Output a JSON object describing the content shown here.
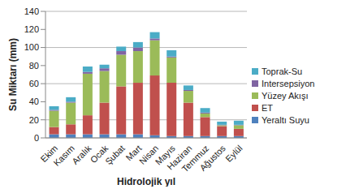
{
  "chart_data": {
    "type": "bar",
    "stacked": true,
    "grid": true,
    "legend": "right",
    "x_label": "Hidrolojik yıl",
    "y_label": "Su Miktarı (mm)",
    "categories": [
      "Ekim",
      "Kasım",
      "Aralık",
      "Ocak",
      "Şubat",
      "Mart",
      "Nisan",
      "Mayıs",
      "Haziran",
      "Temmuz",
      "Ağustos",
      "Eylül"
    ],
    "ylim": [
      0,
      140
    ],
    "yticks": [
      0,
      20,
      40,
      60,
      80,
      100,
      120,
      140
    ],
    "series": [
      {
        "name": "Yeraltı Suyu",
        "color": "#4f81bd",
        "values": [
          4,
          4,
          4,
          4,
          4,
          4,
          3,
          2,
          2,
          2,
          2,
          2
        ]
      },
      {
        "name": "ET",
        "color": "#c0504d",
        "values": [
          8,
          11,
          21,
          35,
          53,
          57,
          66,
          59,
          37,
          21,
          11,
          8
        ]
      },
      {
        "name": "Yüzey Akışı",
        "color": "#9bbb59",
        "values": [
          18,
          24,
          46,
          35,
          35,
          35,
          39,
          28,
          13,
          4,
          1,
          4
        ]
      },
      {
        "name": "Intersepsiyon",
        "color": "#8064a2",
        "values": [
          1,
          1,
          2,
          3,
          4,
          4,
          2,
          1,
          1,
          1,
          0.5,
          0.5
        ]
      },
      {
        "name": "Toprak-Su",
        "color": "#4bacc6",
        "values": [
          4,
          5,
          6,
          4,
          5,
          6,
          7,
          7,
          5,
          5,
          3.5,
          4.5
        ]
      }
    ]
  }
}
